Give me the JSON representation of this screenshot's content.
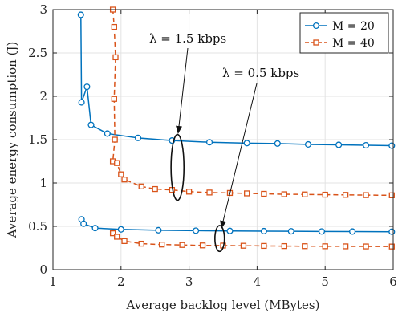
{
  "chart_data": {
    "type": "line",
    "xlabel": "Average backlog level (MBytes)",
    "ylabel": "Average energy consumption (J)",
    "xlim": [
      1,
      6
    ],
    "ylim": [
      0,
      3
    ],
    "xticks": [
      "1",
      "2",
      "3",
      "4",
      "5",
      "6"
    ],
    "yticks": [
      "0",
      "0.5",
      "1",
      "1.5",
      "2",
      "2.5",
      "3"
    ],
    "grid": true,
    "legend_position": "top-right",
    "series": [
      {
        "name": "M = 20",
        "color": "#0072BD",
        "marker": "circle",
        "dash": "solid",
        "curves": [
          [
            [
              1.41,
              2.94
            ],
            [
              1.42,
              1.93
            ],
            [
              1.5,
              2.11
            ],
            [
              1.56,
              1.67
            ],
            [
              1.8,
              1.57
            ],
            [
              2.25,
              1.52
            ],
            [
              2.75,
              1.49
            ],
            [
              3.3,
              1.47
            ],
            [
              3.85,
              1.46
            ],
            [
              4.3,
              1.455
            ],
            [
              4.75,
              1.445
            ],
            [
              5.2,
              1.44
            ],
            [
              5.6,
              1.435
            ],
            [
              5.98,
              1.43
            ]
          ],
          [
            [
              1.42,
              0.58
            ],
            [
              1.45,
              0.53
            ],
            [
              1.62,
              0.48
            ],
            [
              2.0,
              0.465
            ],
            [
              2.55,
              0.455
            ],
            [
              3.1,
              0.45
            ],
            [
              3.6,
              0.447
            ],
            [
              4.1,
              0.445
            ],
            [
              4.5,
              0.443
            ],
            [
              4.95,
              0.441
            ],
            [
              5.4,
              0.44
            ],
            [
              5.98,
              0.438
            ]
          ]
        ]
      },
      {
        "name": "M = 40",
        "color": "#D95319",
        "marker": "square",
        "dash": "dashed",
        "curves": [
          [
            [
              1.88,
              3.0
            ],
            [
              1.9,
              2.8
            ],
            [
              1.92,
              2.45
            ],
            [
              1.9,
              1.97
            ],
            [
              1.91,
              1.5
            ],
            [
              1.88,
              1.25
            ],
            [
              1.94,
              1.23
            ],
            [
              2.0,
              1.1
            ],
            [
              2.05,
              1.04
            ],
            [
              2.3,
              0.96
            ],
            [
              2.5,
              0.93
            ],
            [
              2.75,
              0.92
            ],
            [
              3.0,
              0.9
            ],
            [
              3.3,
              0.89
            ],
            [
              3.6,
              0.885
            ],
            [
              3.85,
              0.88
            ],
            [
              4.1,
              0.875
            ],
            [
              4.4,
              0.87
            ],
            [
              4.7,
              0.868
            ],
            [
              5.0,
              0.865
            ],
            [
              5.3,
              0.863
            ],
            [
              5.6,
              0.86
            ],
            [
              5.98,
              0.858
            ]
          ],
          [
            [
              1.88,
              0.42
            ],
            [
              1.94,
              0.38
            ],
            [
              2.05,
              0.33
            ],
            [
              2.3,
              0.3
            ],
            [
              2.6,
              0.29
            ],
            [
              2.9,
              0.285
            ],
            [
              3.2,
              0.28
            ],
            [
              3.5,
              0.278
            ],
            [
              3.8,
              0.276
            ],
            [
              4.1,
              0.274
            ],
            [
              4.4,
              0.272
            ],
            [
              4.7,
              0.271
            ],
            [
              5.0,
              0.27
            ],
            [
              5.3,
              0.269
            ],
            [
              5.6,
              0.268
            ],
            [
              5.98,
              0.267
            ]
          ]
        ]
      }
    ],
    "annotations": [
      {
        "text": "λ = 1.5 kbps",
        "ellipse_center": [
          2.83,
          1.18
        ],
        "ellipse_radius": [
          0.095,
          0.38
        ]
      },
      {
        "text": "λ = 0.5 kbps",
        "ellipse_center": [
          3.45,
          0.36
        ],
        "ellipse_radius": [
          0.07,
          0.15
        ]
      }
    ]
  }
}
